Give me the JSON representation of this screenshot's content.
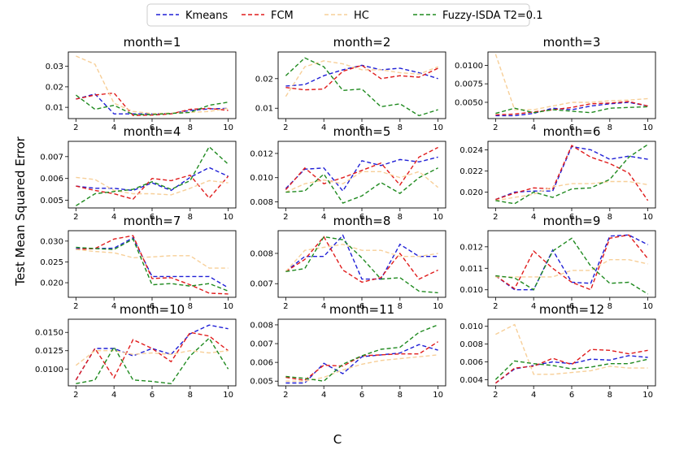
{
  "figure": {
    "ylabel": "Test Mean Squared Error",
    "xlabel": "C"
  },
  "chart_data": {
    "type": "line",
    "x": [
      2,
      3,
      4,
      5,
      6,
      7,
      8,
      9,
      10
    ],
    "xticks": [
      2,
      4,
      6,
      8,
      10
    ],
    "legend": [
      {
        "name": "Kmeans",
        "color": "#1f1fd6"
      },
      {
        "name": "FCM",
        "color": "#e01b1b"
      },
      {
        "name": "HC",
        "color": "#f7cf98"
      },
      {
        "name": "Fuzzy-ISDA T2=0.1",
        "color": "#1f8a1f"
      }
    ],
    "panels": [
      {
        "title": "month=1",
        "ylim": [
          0.0045,
          0.037
        ],
        "yticks": [
          0.01,
          0.02,
          0.03
        ],
        "ytick_labels": [
          "0.01",
          "0.02",
          "0.03"
        ],
        "series": [
          {
            "name": "Kmeans",
            "values": [
              0.014,
              0.0165,
              0.0068,
              0.0068,
              0.0068,
              0.007,
              0.0085,
              0.0092,
              0.0095
            ]
          },
          {
            "name": "FCM",
            "values": [
              0.014,
              0.016,
              0.017,
              0.006,
              0.0062,
              0.0068,
              0.009,
              0.0095,
              0.0085
            ]
          },
          {
            "name": "HC",
            "values": [
              0.035,
              0.031,
              0.012,
              0.008,
              0.007,
              0.0072,
              0.0075,
              0.008,
              0.0095
            ]
          },
          {
            "name": "Fuzzy-ISDA T2=0.1",
            "values": [
              0.016,
              0.009,
              0.011,
              0.0065,
              0.0065,
              0.007,
              0.0075,
              0.011,
              0.0125
            ]
          }
        ]
      },
      {
        "title": "month=2",
        "ylim": [
          0.0065,
          0.029
        ],
        "yticks": [
          0.01,
          0.02
        ],
        "ytick_labels": [
          "0.01",
          "0.02"
        ],
        "series": [
          {
            "name": "Kmeans",
            "values": [
              0.0175,
              0.018,
              0.021,
              0.023,
              0.0245,
              0.023,
              0.0235,
              0.022,
              0.02
            ]
          },
          {
            "name": "FCM",
            "values": [
              0.017,
              0.0162,
              0.0165,
              0.0225,
              0.0245,
              0.02,
              0.021,
              0.0205,
              0.0235
            ]
          },
          {
            "name": "HC",
            "values": [
              0.014,
              0.024,
              0.026,
              0.025,
              0.023,
              0.023,
              0.022,
              0.0215,
              0.024
            ]
          },
          {
            "name": "Fuzzy-ISDA T2=0.1",
            "values": [
              0.021,
              0.027,
              0.024,
              0.016,
              0.0165,
              0.0105,
              0.0115,
              0.0075,
              0.0095
            ]
          }
        ]
      },
      {
        "title": "month=3",
        "ylim": [
          0.0028,
          0.0118
        ],
        "yticks": [
          0.005,
          0.0075,
          0.01
        ],
        "ytick_labels": [
          "0.0050",
          "0.0075",
          "0.0100"
        ],
        "series": [
          {
            "name": "Kmeans",
            "values": [
              0.0032,
              0.0032,
              0.0035,
              0.0042,
              0.004,
              0.0045,
              0.0048,
              0.005,
              0.0045
            ]
          },
          {
            "name": "FCM",
            "values": [
              0.0033,
              0.0034,
              0.0037,
              0.004,
              0.0043,
              0.0048,
              0.0049,
              0.0051,
              0.0045
            ]
          },
          {
            "name": "HC",
            "values": [
              0.0115,
              0.004,
              0.004,
              0.0045,
              0.005,
              0.005,
              0.0052,
              0.0053,
              0.0055
            ]
          },
          {
            "name": "Fuzzy-ISDA T2=0.1",
            "values": [
              0.0035,
              0.0042,
              0.0036,
              0.004,
              0.0038,
              0.0036,
              0.0042,
              0.0043,
              0.0044
            ]
          }
        ]
      },
      {
        "title": "month=4",
        "ylim": [
          0.00465,
          0.0077
        ],
        "yticks": [
          0.005,
          0.006,
          0.007
        ],
        "ytick_labels": [
          "0.005",
          "0.006",
          "0.007"
        ],
        "series": [
          {
            "name": "Kmeans",
            "values": [
              0.00565,
              0.00555,
              0.00555,
              0.00545,
              0.0058,
              0.00545,
              0.00605,
              0.0065,
              0.0061
            ]
          },
          {
            "name": "FCM",
            "values": [
              0.00565,
              0.00545,
              0.0053,
              0.00505,
              0.006,
              0.0059,
              0.00615,
              0.0051,
              0.0061
            ]
          },
          {
            "name": "HC",
            "values": [
              0.00605,
              0.00595,
              0.00545,
              0.0053,
              0.0053,
              0.00525,
              0.00555,
              0.0059,
              0.0058
            ]
          },
          {
            "name": "Fuzzy-ISDA T2=0.1",
            "values": [
              0.00475,
              0.0053,
              0.0054,
              0.0055,
              0.00585,
              0.0055,
              0.0059,
              0.00745,
              0.00665
            ]
          }
        ]
      },
      {
        "title": "month=5",
        "ylim": [
          0.0075,
          0.013
        ],
        "yticks": [
          0.008,
          0.01,
          0.012
        ],
        "ytick_labels": [
          "0.008",
          "0.010",
          "0.012"
        ],
        "series": [
          {
            "name": "Kmeans",
            "values": [
              0.0091,
              0.0107,
              0.0108,
              0.0089,
              0.0114,
              0.011,
              0.0115,
              0.0113,
              0.0117
            ]
          },
          {
            "name": "FCM",
            "values": [
              0.009,
              0.0108,
              0.0095,
              0.01,
              0.0106,
              0.0112,
              0.0094,
              0.0117,
              0.0125
            ]
          },
          {
            "name": "HC",
            "values": [
              0.0088,
              0.0095,
              0.0098,
              0.0095,
              0.0105,
              0.0105,
              0.01,
              0.0105,
              0.0092
            ]
          },
          {
            "name": "Fuzzy-ISDA T2=0.1",
            "values": [
              0.0088,
              0.0089,
              0.0103,
              0.0079,
              0.0085,
              0.0096,
              0.0087,
              0.01,
              0.0108
            ]
          }
        ]
      },
      {
        "title": "month=6",
        "ylim": [
          0.0185,
          0.0248
        ],
        "yticks": [
          0.02,
          0.022,
          0.024
        ],
        "ytick_labels": [
          "0.020",
          "0.022",
          "0.024"
        ],
        "series": [
          {
            "name": "Kmeans",
            "values": [
              0.0193,
              0.02,
              0.0201,
              0.0201,
              0.0243,
              0.024,
              0.0231,
              0.0234,
              0.0231
            ]
          },
          {
            "name": "FCM",
            "values": [
              0.0193,
              0.0199,
              0.0204,
              0.0203,
              0.0244,
              0.0233,
              0.0227,
              0.0218,
              0.0192
            ]
          },
          {
            "name": "HC",
            "values": [
              0.0192,
              0.0195,
              0.0198,
              0.0205,
              0.0208,
              0.0208,
              0.021,
              0.021,
              0.0207
            ]
          },
          {
            "name": "Fuzzy-ISDA T2=0.1",
            "values": [
              0.0192,
              0.0189,
              0.02,
              0.0195,
              0.0203,
              0.0204,
              0.0212,
              0.0233,
              0.0245
            ]
          }
        ]
      },
      {
        "title": "month=7",
        "ylim": [
          0.0165,
          0.0325
        ],
        "yticks": [
          0.02,
          0.025,
          0.03
        ],
        "ytick_labels": [
          "0.020",
          "0.025",
          "0.030"
        ],
        "series": [
          {
            "name": "Kmeans",
            "values": [
              0.0282,
              0.0282,
              0.0283,
              0.0308,
              0.0215,
              0.0215,
              0.0215,
              0.0215,
              0.0188
            ]
          },
          {
            "name": "FCM",
            "values": [
              0.028,
              0.0282,
              0.0305,
              0.0313,
              0.021,
              0.0212,
              0.0195,
              0.0175,
              0.0173
            ]
          },
          {
            "name": "HC",
            "values": [
              0.028,
              0.0275,
              0.0272,
              0.026,
              0.0262,
              0.0265,
              0.0265,
              0.0235,
              0.0235
            ]
          },
          {
            "name": "Fuzzy-ISDA T2=0.1",
            "values": [
              0.0285,
              0.0282,
              0.028,
              0.0305,
              0.0195,
              0.0198,
              0.0192,
              0.0198,
              0.018
            ]
          }
        ]
      },
      {
        "title": "month=8",
        "ylim": [
          0.00655,
          0.00875
        ],
        "yticks": [
          0.007,
          0.008
        ],
        "ytick_labels": [
          "0.007",
          "0.008"
        ],
        "series": [
          {
            "name": "Kmeans",
            "values": [
              0.0074,
              0.0079,
              0.0079,
              0.0086,
              0.00715,
              0.00715,
              0.0083,
              0.0079,
              0.0079
            ]
          },
          {
            "name": "FCM",
            "values": [
              0.0074,
              0.0078,
              0.00855,
              0.00745,
              0.00705,
              0.0072,
              0.008,
              0.00715,
              0.00745
            ]
          },
          {
            "name": "HC",
            "values": [
              0.0074,
              0.0081,
              0.0082,
              0.0083,
              0.0081,
              0.0081,
              0.0079,
              0.0079,
              0.008
            ]
          },
          {
            "name": "Fuzzy-ISDA T2=0.1",
            "values": [
              0.0074,
              0.0075,
              0.00855,
              0.00845,
              0.00785,
              0.00715,
              0.0072,
              0.00675,
              0.0067
            ]
          }
        ]
      },
      {
        "title": "month=9",
        "ylim": [
          0.00965,
          0.01275
        ],
        "yticks": [
          0.01,
          0.011,
          0.012
        ],
        "ytick_labels": [
          "0.010",
          "0.011",
          "0.012"
        ],
        "series": [
          {
            "name": "Kmeans",
            "values": [
              0.01065,
              0.01,
              0.01,
              0.01185,
              0.01035,
              0.0103,
              0.0125,
              0.01255,
              0.0121
            ]
          },
          {
            "name": "FCM",
            "values": [
              0.01065,
              0.01005,
              0.0118,
              0.011,
              0.01035,
              0.01,
              0.0124,
              0.01255,
              0.01145
            ]
          },
          {
            "name": "HC",
            "values": [
              0.0106,
              0.0106,
              0.0106,
              0.0106,
              0.0109,
              0.0109,
              0.0114,
              0.0114,
              0.0112
            ]
          },
          {
            "name": "Fuzzy-ISDA T2=0.1",
            "values": [
              0.01065,
              0.01055,
              0.01,
              0.0118,
              0.0124,
              0.0111,
              0.0103,
              0.01035,
              0.0098
            ]
          }
        ]
      },
      {
        "title": "month=10",
        "ylim": [
          0.0077,
          0.0168
        ],
        "yticks": [
          0.01,
          0.0125,
          0.015
        ],
        "ytick_labels": [
          "0.0100",
          "0.0125",
          "0.0150"
        ],
        "series": [
          {
            "name": "Kmeans",
            "values": [
              0.0085,
              0.0128,
              0.0128,
              0.0118,
              0.0128,
              0.012,
              0.0148,
              0.016,
              0.0155
            ]
          },
          {
            "name": "FCM",
            "values": [
              0.0085,
              0.0128,
              0.0088,
              0.014,
              0.0128,
              0.011,
              0.015,
              0.0145,
              0.0125
            ]
          },
          {
            "name": "HC",
            "values": [
              0.0105,
              0.0125,
              0.0125,
              0.012,
              0.0122,
              0.012,
              0.0125,
              0.0122,
              0.0125
            ]
          },
          {
            "name": "Fuzzy-ISDA T2=0.1",
            "values": [
              0.008,
              0.0085,
              0.013,
              0.0085,
              0.0083,
              0.008,
              0.0118,
              0.0142,
              0.01
            ]
          }
        ]
      },
      {
        "title": "month=11",
        "ylim": [
          0.00475,
          0.0083
        ],
        "yticks": [
          0.005,
          0.006,
          0.007,
          0.008
        ],
        "ytick_labels": [
          "0.005",
          "0.006",
          "0.007",
          "0.008"
        ],
        "series": [
          {
            "name": "Kmeans",
            "values": [
              0.0049,
              0.0049,
              0.00595,
              0.0054,
              0.0063,
              0.0064,
              0.0065,
              0.00695,
              0.00665
            ]
          },
          {
            "name": "FCM",
            "values": [
              0.0052,
              0.00505,
              0.00585,
              0.0058,
              0.00635,
              0.0064,
              0.00645,
              0.00645,
              0.0071
            ]
          },
          {
            "name": "HC",
            "values": [
              0.005,
              0.005,
              0.0052,
              0.0056,
              0.0059,
              0.0061,
              0.0062,
              0.0063,
              0.0064
            ]
          },
          {
            "name": "Fuzzy-ISDA T2=0.1",
            "values": [
              0.00525,
              0.00515,
              0.005,
              0.0059,
              0.00635,
              0.0067,
              0.0068,
              0.0076,
              0.008
            ]
          }
        ]
      },
      {
        "title": "month=12",
        "ylim": [
          0.0033,
          0.0108
        ],
        "yticks": [
          0.004,
          0.006,
          0.008,
          0.01
        ],
        "ytick_labels": [
          "0.004",
          "0.006",
          "0.008",
          "0.010"
        ],
        "series": [
          {
            "name": "Kmeans",
            "values": [
              0.0036,
              0.0052,
              0.0056,
              0.006,
              0.0058,
              0.0063,
              0.0062,
              0.0067,
              0.0065
            ]
          },
          {
            "name": "FCM",
            "values": [
              0.0036,
              0.0053,
              0.0055,
              0.0064,
              0.0057,
              0.0074,
              0.0073,
              0.0069,
              0.0073
            ]
          },
          {
            "name": "HC",
            "values": [
              0.0091,
              0.0102,
              0.0046,
              0.0046,
              0.0048,
              0.005,
              0.0055,
              0.0053,
              0.0053
            ]
          },
          {
            "name": "Fuzzy-ISDA T2=0.1",
            "values": [
              0.004,
              0.0061,
              0.0058,
              0.0056,
              0.0052,
              0.0054,
              0.0058,
              0.0058,
              0.0063
            ]
          }
        ]
      }
    ]
  }
}
